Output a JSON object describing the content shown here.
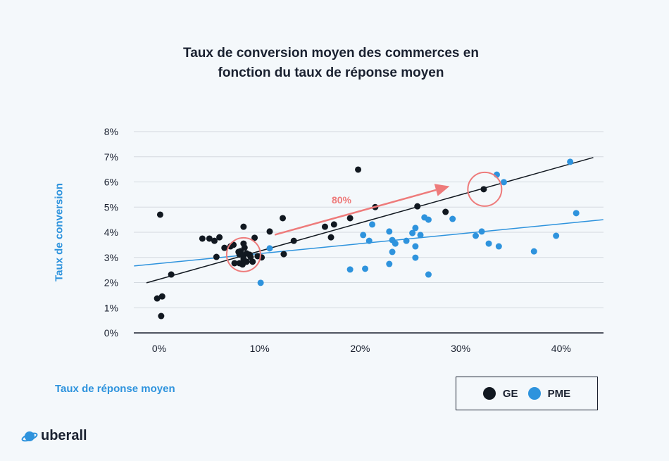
{
  "chart_data": {
    "type": "scatter",
    "title": "Taux de conversion moyen des commerces en fonction du taux de réponse moyen",
    "title_lines": [
      "Taux de conversion moyen des commerces en",
      "fonction du taux de réponse moyen"
    ],
    "xlabel": "Taux de réponse moyen",
    "ylabel": "Taux de conversion",
    "xlim": [
      -2.5,
      44.5
    ],
    "ylim": [
      0,
      8
    ],
    "xticks": [
      0,
      10,
      20,
      30,
      40
    ],
    "xtick_labels": [
      "0%",
      "10%",
      "20%",
      "30%",
      "40%"
    ],
    "yticks": [
      0,
      1,
      2,
      3,
      4,
      5,
      6,
      7,
      8
    ],
    "ytick_labels": [
      "0%",
      "1%",
      "2%",
      "3%",
      "4%",
      "5%",
      "6%",
      "7%",
      "8%"
    ],
    "grid": "horizontal",
    "legend_position": "bottom-right",
    "series": [
      {
        "name": "GE",
        "color": "#111820",
        "points": [
          [
            0.1,
            4.7
          ],
          [
            -0.2,
            1.37
          ],
          [
            0.3,
            1.45
          ],
          [
            0.2,
            0.67
          ],
          [
            1.2,
            2.32
          ],
          [
            4.3,
            3.75
          ],
          [
            5.0,
            3.75
          ],
          [
            5.5,
            3.66
          ],
          [
            6.0,
            3.8
          ],
          [
            5.7,
            3.02
          ],
          [
            6.5,
            3.38
          ],
          [
            7.1,
            3.44
          ],
          [
            7.4,
            3.5
          ],
          [
            8.4,
            4.22
          ],
          [
            8.4,
            3.55
          ],
          [
            11.0,
            4.03
          ],
          [
            12.3,
            4.56
          ],
          [
            9.5,
            3.78
          ],
          [
            12.4,
            3.13
          ],
          [
            13.4,
            3.66
          ],
          [
            16.5,
            4.22
          ],
          [
            17.4,
            4.31
          ],
          [
            17.1,
            3.8
          ],
          [
            19.0,
            4.56
          ],
          [
            19.8,
            6.49
          ],
          [
            21.5,
            5.0
          ],
          [
            25.7,
            5.03
          ],
          [
            28.5,
            4.81
          ],
          [
            32.3,
            5.71
          ],
          [
            7.9,
            3.22
          ],
          [
            8.0,
            3.11
          ],
          [
            8.4,
            3.08
          ],
          [
            8.7,
            3.16
          ],
          [
            9.0,
            3.11
          ],
          [
            7.5,
            2.77
          ],
          [
            8.0,
            2.77
          ],
          [
            9.3,
            2.83
          ],
          [
            9.8,
            3.05
          ],
          [
            10.2,
            3.0
          ],
          [
            8.4,
            2.94
          ],
          [
            9.1,
            3.02
          ],
          [
            8.3,
            2.72
          ],
          [
            8.7,
            2.83
          ],
          [
            8.1,
            3.25
          ],
          [
            8.5,
            3.39
          ]
        ],
        "trend": [
          [
            -1.26,
            1.99
          ],
          [
            43.2,
            6.97
          ]
        ]
      },
      {
        "name": "PME",
        "color": "#2e93dd",
        "points": [
          [
            10.1,
            1.99
          ],
          [
            11.0,
            3.36
          ],
          [
            26.4,
            4.59
          ],
          [
            26.8,
            4.5
          ],
          [
            29.2,
            4.53
          ],
          [
            21.2,
            4.31
          ],
          [
            20.3,
            3.89
          ],
          [
            20.9,
            3.66
          ],
          [
            22.9,
            4.03
          ],
          [
            23.2,
            3.69
          ],
          [
            23.5,
            3.55
          ],
          [
            23.2,
            3.22
          ],
          [
            22.9,
            2.74
          ],
          [
            19.0,
            2.52
          ],
          [
            20.5,
            2.55
          ],
          [
            24.6,
            3.66
          ],
          [
            25.2,
            3.97
          ],
          [
            25.5,
            4.17
          ],
          [
            26.0,
            3.89
          ],
          [
            25.5,
            3.44
          ],
          [
            25.5,
            2.99
          ],
          [
            26.8,
            2.32
          ],
          [
            31.5,
            3.86
          ],
          [
            32.1,
            4.03
          ],
          [
            32.8,
            3.55
          ],
          [
            33.8,
            3.44
          ],
          [
            37.3,
            3.24
          ],
          [
            39.5,
            3.86
          ],
          [
            41.5,
            4.76
          ],
          [
            40.9,
            6.8
          ],
          [
            33.6,
            6.29
          ],
          [
            34.3,
            5.99
          ]
        ],
        "trend": [
          [
            -2.5,
            2.66
          ],
          [
            44.2,
            4.5
          ]
        ]
      }
    ],
    "annotations": {
      "arrow_label": "80%",
      "color": "#ee7b7b",
      "arrow_from": [
        11.5,
        3.9
      ],
      "arrow_to": [
        28.9,
        5.83
      ],
      "circles": [
        [
          8.4,
          3.11
        ],
        [
          32.4,
          5.71
        ]
      ]
    }
  },
  "brand": {
    "name": "uberall"
  }
}
